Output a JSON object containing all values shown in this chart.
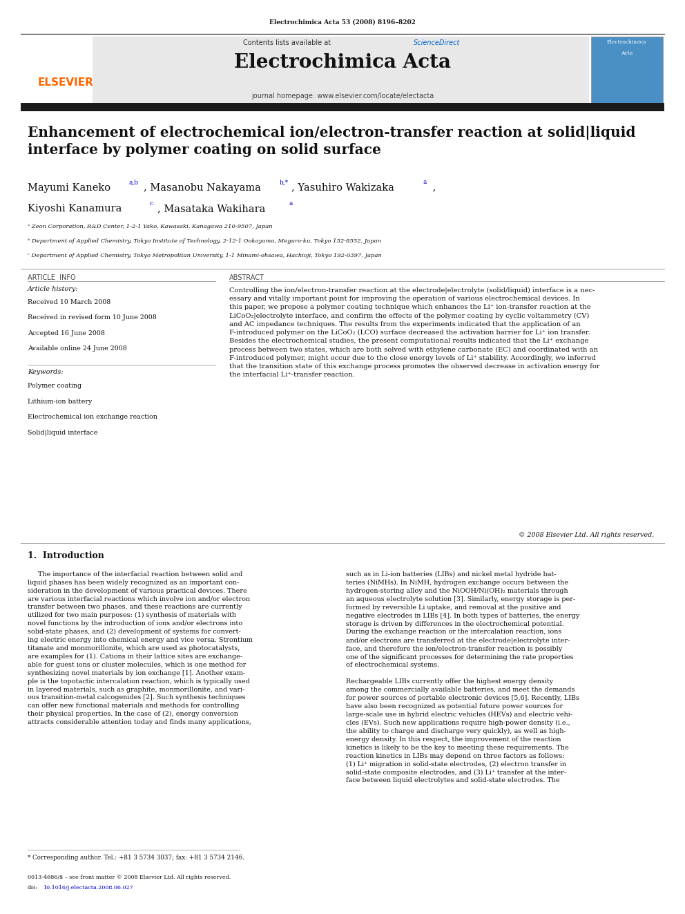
{
  "page_width": 9.92,
  "page_height": 13.23,
  "dpi": 100,
  "background_color": "#ffffff",
  "top_citation": "Electrochimica Acta 53 (2008) 8196–8202",
  "journal_name": "Electrochimica Acta",
  "sciencedirect_color": "#0066cc",
  "journal_homepage": "journal homepage: www.elsevier.com/locate/electacta",
  "elsevier_color": "#FF6600",
  "header_bg": "#e8e8e8",
  "dark_bar_color": "#1a1a1a",
  "article_title": "Enhancement of electrochemical ion/electron-transfer reaction at solid|liquid\ninterface by polymer coating on solid surface",
  "affil_a": "ᵃ Zeon Corporation, R&D Center, 1-2-1 Yako, Kawasaki, Kanagawa 210-9507, Japan",
  "affil_b": "ᵇ Department of Applied Chemistry, Tokyo Institute of Technology, 2-12-1 Ookayama, Meguro-ku, Tokyo 152-8552, Japan",
  "affil_c": "ᶜ Department of Applied Chemistry, Tokyo Metropolitan University, 1-1 Minami-ohsawa, Hachioji, Tokyo 192-0397, Japan",
  "article_history_label": "Article history:",
  "received": "Received 10 March 2008",
  "received_revised": "Received in revised form 10 June 2008",
  "accepted": "Accepted 16 June 2008",
  "available": "Available online 24 June 2008",
  "keywords_label": "Keywords:",
  "keyword1": "Polymer coating",
  "keyword2": "Lithium-ion battery",
  "keyword3": "Electrochemical ion exchange reaction",
  "keyword4": "Solid|liquid interface",
  "abstract_text": "Controlling the ion/electron-transfer reaction at the electrode|electrolyte (solid/liquid) interface is a nec-\nessary and vitally important point for improving the operation of various electrochemical devices. In\nthis paper, we propose a polymer coating technique which enhances the Li⁺ ion-transfer reaction at the\nLiCoO₂|electrolyte interface, and confirm the effects of the polymer coating by cyclic voltammetry (CV)\nand AC impedance techniques. The results from the experiments indicated that the application of an\nF-introduced polymer on the LiCoO₂ (LCO) surface decreased the activation barrier for Li⁺ ion transfer.\nBesides the electrochemical studies, the present computational results indicated that the Li⁺ exchange\nprocess between two states, which are both solved with ethylene carbonate (EC) and coordinated with an\nF-introduced polymer, might occur due to the close energy levels of Li⁺ stability. Accordingly, we inferred\nthat the transition state of this exchange process promotes the observed decrease in activation energy for\nthe interfacial Li⁺-transfer reaction.",
  "copyright_text": "© 2008 Elsevier Ltd. All rights reserved.",
  "intro_heading": "1.  Introduction",
  "intro_col1": "     The importance of the interfacial reaction between solid and\nliquid phases has been widely recognized as an important con-\nsideration in the development of various practical devices. There\nare various interfacial reactions which involve ion and/or electron\ntransfer between two phases, and these reactions are currently\nutilized for two main purposes: (1) synthesis of materials with\nnovel functions by the introduction of ions and/or electrons into\nsolid-state phases, and (2) development of systems for convert-\ning electric energy into chemical energy and vice versa. Strontium\ntitanate and monmorillonite, which are used as photocatalysts,\nare examples for (1). Cations in their lattice sites are exchange-\nable for guest ions or cluster molecules, which is one method for\nsynthesizing novel materials by ion exchange [1]. Another exam-\nple is the topotactic intercalation reaction, which is typically used\nin layered materials, such as graphite, monmorillonite, and vari-\nous transition-metal calcogenides [2]. Such synthesis techniques\ncan offer new functional materials and methods for controlling\ntheir physical properties. In the case of (2), energy conversion\nattracts considerable attention today and finds many applications,",
  "intro_col2": "such as in Li-ion batteries (LIBs) and nickel metal hydride bat-\nteries (NiMHs). In NiMH, hydrogen exchange occurs between the\nhydrogen-storing alloy and the NiOOH/Ni(OH)₂ materials through\nan aqueous electrolyte solution [3]. Similarly, energy storage is per-\nformed by reversible Li uptake, and removal at the positive and\nnegative electrodes in LIBs [4]. In both types of batteries, the energy\nstorage is driven by differences in the electrochemical potential.\nDuring the exchange reaction or the intercalation reaction, ions\nand/or electrons are transferred at the electrode|electrolyte inter-\nface, and therefore the ion/electron-transfer reaction is possibly\none of the significant processes for determining the rate properties\nof electrochemical systems.\n\nRechargeable LIBs currently offer the highest energy density\namong the commercially available batteries, and meet the demands\nfor power sources of portable electronic devices [5,6]. Recently, LIBs\nhave also been recognized as potential future power sources for\nlarge-scale use in hybrid electric vehicles (HEVs) and electric vehi-\ncles (EVs). Such new applications require high-power density (i.e.,\nthe ability to charge and discharge very quickly), as well as high-\nenergy density. In this respect, the improvement of the reaction\nkinetics is likely to be the key to meeting these requirements. The\nreaction kinetics in LIBs may depend on three factors as follows:\n(1) Li⁺ migration in solid-state electrodes, (2) electron transfer in\nsolid-state composite electrodes, and (3) Li⁺ transfer at the inter-\nface between liquid electrolytes and solid-state electrodes. The",
  "corresponding_note": "* Corresponding author. Tel.: +81 3 5734 3037; fax: +81 3 5734 2146.",
  "footer_line1": "0013-4686/$ – see front matter © 2008 Elsevier Ltd. All rights reserved.",
  "footer_doi_text": "doi:",
  "footer_doi_link": "10.1016/j.electacta.2008.06.027",
  "link_color": "#0000cc"
}
